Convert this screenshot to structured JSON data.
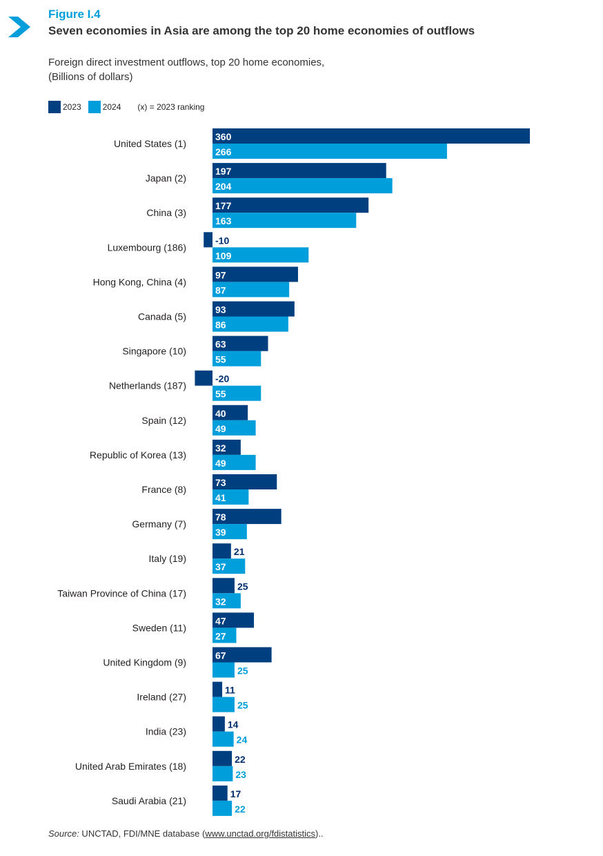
{
  "header": {
    "figure_label": "Figure I.4",
    "title": "Seven economies in Asia are among the top 20 home economies of outflows",
    "subtitle_line1": "Foreign direct investment outflows, top 20 home economies,",
    "subtitle_line2": "(Billions of dollars)"
  },
  "legend": {
    "items": [
      "2023",
      "2024"
    ],
    "note": "(x) = 2023 ranking"
  },
  "colors": {
    "series_2023": "#003f7f",
    "series_2024": "#009edb",
    "accent": "#009edb"
  },
  "chart_data": {
    "type": "bar",
    "orientation": "horizontal",
    "categories": [
      "United States (1)",
      "Japan (2)",
      "China (3)",
      "Luxembourg (186)",
      "Hong Kong, China (4)",
      "Canada (5)",
      "Singapore (10)",
      "Netherlands (187)",
      "Spain (12)",
      "Republic of Korea (13)",
      "France (8)",
      "Germany (7)",
      "Italy (19)",
      "Taiwan Province of China (17)",
      "Sweden (11)",
      "United Kingdom (9)",
      "Ireland (27)",
      "India (23)",
      "United Arab Emirates (18)",
      "Saudi Arabia (21)"
    ],
    "series": [
      {
        "name": "2023",
        "values": [
          360,
          197,
          177,
          -10,
          97,
          93,
          63,
          -20,
          40,
          32,
          73,
          78,
          21,
          25,
          47,
          67,
          11,
          14,
          22,
          17
        ]
      },
      {
        "name": "2024",
        "values": [
          266,
          204,
          163,
          109,
          87,
          86,
          55,
          55,
          49,
          49,
          41,
          39,
          37,
          32,
          27,
          25,
          25,
          24,
          23,
          22
        ]
      }
    ],
    "legend_position": "top-left",
    "grid": false
  },
  "source": {
    "label": "Source:",
    "text": " UNCTAD, FDI/MNE database (",
    "url": "www.unctad.org/fdistatistics",
    "suffix": ").."
  }
}
